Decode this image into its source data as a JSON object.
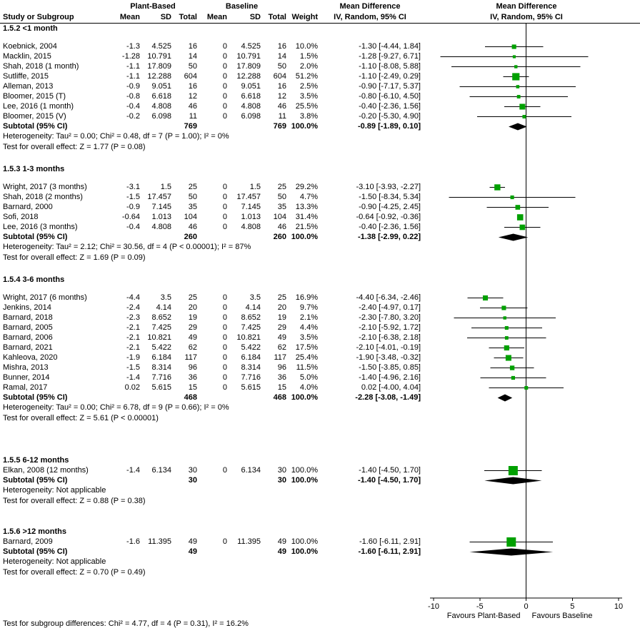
{
  "chart_data": {
    "type": "forest",
    "effect_measure": "Mean Difference",
    "columns": {
      "study": "Study or Subgroup",
      "group1": "Plant-Based",
      "group2": "Baseline",
      "mean": "Mean",
      "sd": "SD",
      "total": "Total",
      "weight": "Weight",
      "md": "Mean Difference",
      "iv": "IV, Random, 95% CI"
    },
    "labels": {
      "subtotal": "Subtotal (95% CI)"
    },
    "axis": {
      "min": -10,
      "max": 10,
      "ticks": [
        -10,
        -5,
        0,
        5,
        10
      ],
      "favours_left": "Favours Plant-Based",
      "favours_right": "Favours Baseline"
    },
    "colors": {
      "marker": "#00A000",
      "line": "#000000",
      "diamond": "#000000"
    },
    "groups": [
      {
        "label": "1.5.2 <1 month",
        "studies": [
          {
            "name": "Koebnick, 2004",
            "mean": "-1.3",
            "sd": "4.525",
            "total": 16,
            "b_mean": "0",
            "b_sd": "4.525",
            "b_total": 16,
            "weight": 10.0,
            "est": -1.3,
            "lo": -4.44,
            "hi": 1.84
          },
          {
            "name": "Macklin, 2015",
            "mean": "-1.28",
            "sd": "10.791",
            "total": 14,
            "b_mean": "0",
            "b_sd": "10.791",
            "b_total": 14,
            "weight": 1.5,
            "est": -1.28,
            "lo": -9.27,
            "hi": 6.71
          },
          {
            "name": "Shah, 2018 (1 month)",
            "mean": "-1.1",
            "sd": "17.809",
            "total": 50,
            "b_mean": "0",
            "b_sd": "17.809",
            "b_total": 50,
            "weight": 2.0,
            "est": -1.1,
            "lo": -8.08,
            "hi": 5.88
          },
          {
            "name": "Sutliffe, 2015",
            "mean": "-1.1",
            "sd": "12.288",
            "total": 604,
            "b_mean": "0",
            "b_sd": "12.288",
            "b_total": 604,
            "weight": 51.2,
            "est": -1.1,
            "lo": -2.49,
            "hi": 0.29
          },
          {
            "name": "Alleman, 2013",
            "mean": "-0.9",
            "sd": "9.051",
            "total": 16,
            "b_mean": "0",
            "b_sd": "9.051",
            "b_total": 16,
            "weight": 2.5,
            "est": -0.9,
            "lo": -7.17,
            "hi": 5.37
          },
          {
            "name": "Bloomer, 2015 (T)",
            "mean": "-0.8",
            "sd": "6.618",
            "total": 12,
            "b_mean": "0",
            "b_sd": "6.618",
            "b_total": 12,
            "weight": 3.5,
            "est": -0.8,
            "lo": -6.1,
            "hi": 4.5
          },
          {
            "name": "Lee, 2016 (1 month)",
            "mean": "-0.4",
            "sd": "4.808",
            "total": 46,
            "b_mean": "0",
            "b_sd": "4.808",
            "b_total": 46,
            "weight": 25.5,
            "est": -0.4,
            "lo": -2.36,
            "hi": 1.56
          },
          {
            "name": "Bloomer, 2015 (V)",
            "mean": "-0.2",
            "sd": "6.098",
            "total": 11,
            "b_mean": "0",
            "b_sd": "6.098",
            "b_total": 11,
            "weight": 3.8,
            "est": -0.2,
            "lo": -5.3,
            "hi": 4.9
          }
        ],
        "subtotal": {
          "total": 769,
          "b_total": 769,
          "weight": 100.0,
          "est": -0.89,
          "lo": -1.89,
          "hi": 0.1
        },
        "heterogeneity": "Heterogeneity: Tau² = 0.00; Chi² = 0.48, df = 7 (P = 1.00); I² = 0%",
        "test": "Test for overall effect: Z = 1.77 (P = 0.08)"
      },
      {
        "label": "1.5.3 1-3 months",
        "studies": [
          {
            "name": "Wright, 2017 (3 months)",
            "mean": "-3.1",
            "sd": "1.5",
            "total": 25,
            "b_mean": "0",
            "b_sd": "1.5",
            "b_total": 25,
            "weight": 29.2,
            "est": -3.1,
            "lo": -3.93,
            "hi": -2.27
          },
          {
            "name": "Shah, 2018 (2 months)",
            "mean": "-1.5",
            "sd": "17.457",
            "total": 50,
            "b_mean": "0",
            "b_sd": "17.457",
            "b_total": 50,
            "weight": 4.7,
            "est": -1.5,
            "lo": -8.34,
            "hi": 5.34
          },
          {
            "name": "Barnard, 2000",
            "mean": "-0.9",
            "sd": "7.145",
            "total": 35,
            "b_mean": "0",
            "b_sd": "7.145",
            "b_total": 35,
            "weight": 13.3,
            "est": -0.9,
            "lo": -4.25,
            "hi": 2.45
          },
          {
            "name": "Sofi, 2018",
            "mean": "-0.64",
            "sd": "1.013",
            "total": 104,
            "b_mean": "0",
            "b_sd": "1.013",
            "b_total": 104,
            "weight": 31.4,
            "est": -0.64,
            "lo": -0.92,
            "hi": -0.36
          },
          {
            "name": "Lee, 2016 (3 months)",
            "mean": "-0.4",
            "sd": "4.808",
            "total": 46,
            "b_mean": "0",
            "b_sd": "4.808",
            "b_total": 46,
            "weight": 21.5,
            "est": -0.4,
            "lo": -2.36,
            "hi": 1.56
          }
        ],
        "subtotal": {
          "total": 260,
          "b_total": 260,
          "weight": 100.0,
          "est": -1.38,
          "lo": -2.99,
          "hi": 0.22
        },
        "heterogeneity": "Heterogeneity: Tau² = 2.12; Chi² = 30.56, df = 4 (P < 0.00001); I² = 87%",
        "test": "Test for overall effect: Z = 1.69 (P = 0.09)"
      },
      {
        "label": "1.5.4 3-6 months",
        "studies": [
          {
            "name": "Wright, 2017 (6 months)",
            "mean": "-4.4",
            "sd": "3.5",
            "total": 25,
            "b_mean": "0",
            "b_sd": "3.5",
            "b_total": 25,
            "weight": 16.9,
            "est": -4.4,
            "lo": -6.34,
            "hi": -2.46
          },
          {
            "name": "Jenkins, 2014",
            "mean": "-2.4",
            "sd": "4.14",
            "total": 20,
            "b_mean": "0",
            "b_sd": "4.14",
            "b_total": 20,
            "weight": 9.7,
            "est": -2.4,
            "lo": -4.97,
            "hi": 0.17
          },
          {
            "name": "Barnard, 2018",
            "mean": "-2.3",
            "sd": "8.652",
            "total": 19,
            "b_mean": "0",
            "b_sd": "8.652",
            "b_total": 19,
            "weight": 2.1,
            "est": -2.3,
            "lo": -7.8,
            "hi": 3.2
          },
          {
            "name": "Barnard, 2005",
            "mean": "-2.1",
            "sd": "7.425",
            "total": 29,
            "b_mean": "0",
            "b_sd": "7.425",
            "b_total": 29,
            "weight": 4.4,
            "est": -2.1,
            "lo": -5.92,
            "hi": 1.72
          },
          {
            "name": "Barnard, 2006",
            "mean": "-2.1",
            "sd": "10.821",
            "total": 49,
            "b_mean": "0",
            "b_sd": "10.821",
            "b_total": 49,
            "weight": 3.5,
            "est": -2.1,
            "lo": -6.38,
            "hi": 2.18
          },
          {
            "name": "Barnard, 2021",
            "mean": "-2.1",
            "sd": "5.422",
            "total": 62,
            "b_mean": "0",
            "b_sd": "5.422",
            "b_total": 62,
            "weight": 17.5,
            "est": -2.1,
            "lo": -4.01,
            "hi": -0.19
          },
          {
            "name": "Kahleova, 2020",
            "mean": "-1.9",
            "sd": "6.184",
            "total": 117,
            "b_mean": "0",
            "b_sd": "6.184",
            "b_total": 117,
            "weight": 25.4,
            "est": -1.9,
            "lo": -3.48,
            "hi": -0.32
          },
          {
            "name": "Mishra, 2013",
            "mean": "-1.5",
            "sd": "8.314",
            "total": 96,
            "b_mean": "0",
            "b_sd": "8.314",
            "b_total": 96,
            "weight": 11.5,
            "est": -1.5,
            "lo": -3.85,
            "hi": 0.85
          },
          {
            "name": "Bunner, 2014",
            "mean": "-1.4",
            "sd": "7.716",
            "total": 36,
            "b_mean": "0",
            "b_sd": "7.716",
            "b_total": 36,
            "weight": 5.0,
            "est": -1.4,
            "lo": -4.96,
            "hi": 2.16
          },
          {
            "name": "Ramal, 2017",
            "mean": "0.02",
            "sd": "5.615",
            "total": 15,
            "b_mean": "0",
            "b_sd": "5.615",
            "b_total": 15,
            "weight": 4.0,
            "est": 0.02,
            "lo": -4.0,
            "hi": 4.04
          }
        ],
        "subtotal": {
          "total": 468,
          "b_total": 468,
          "weight": 100.0,
          "est": -2.28,
          "lo": -3.08,
          "hi": -1.49
        },
        "heterogeneity": "Heterogeneity: Tau² = 0.00; Chi² = 6.78, df = 9 (P = 0.66); I² = 0%",
        "test": "Test for overall effect: Z = 5.61 (P < 0.00001)"
      },
      {
        "label": "1.5.5 6-12 months",
        "studies": [
          {
            "name": "Elkan, 2008 (12 months)",
            "mean": "-1.4",
            "sd": "6.134",
            "total": 30,
            "b_mean": "0",
            "b_sd": "6.134",
            "b_total": 30,
            "weight": 100.0,
            "est": -1.4,
            "lo": -4.5,
            "hi": 1.7
          }
        ],
        "subtotal": {
          "total": 30,
          "b_total": 30,
          "weight": 100.0,
          "est": -1.4,
          "lo": -4.5,
          "hi": 1.7
        },
        "heterogeneity": "Heterogeneity: Not applicable",
        "test": "Test for overall effect: Z = 0.88 (P = 0.38)"
      },
      {
        "label": "1.5.6 >12 months",
        "studies": [
          {
            "name": "Barnard, 2009",
            "mean": "-1.6",
            "sd": "11.395",
            "total": 49,
            "b_mean": "0",
            "b_sd": "11.395",
            "b_total": 49,
            "weight": 100.0,
            "est": -1.6,
            "lo": -6.11,
            "hi": 2.91
          }
        ],
        "subtotal": {
          "total": 49,
          "b_total": 49,
          "weight": 100.0,
          "est": -1.6,
          "lo": -6.11,
          "hi": 2.91
        },
        "heterogeneity": "Heterogeneity: Not applicable",
        "test": "Test for overall effect: Z = 0.70 (P = 0.49)"
      }
    ],
    "footer": "Test for subgroup differences: Chi² = 4.77, df = 4 (P = 0.31), I² = 16.2%"
  }
}
